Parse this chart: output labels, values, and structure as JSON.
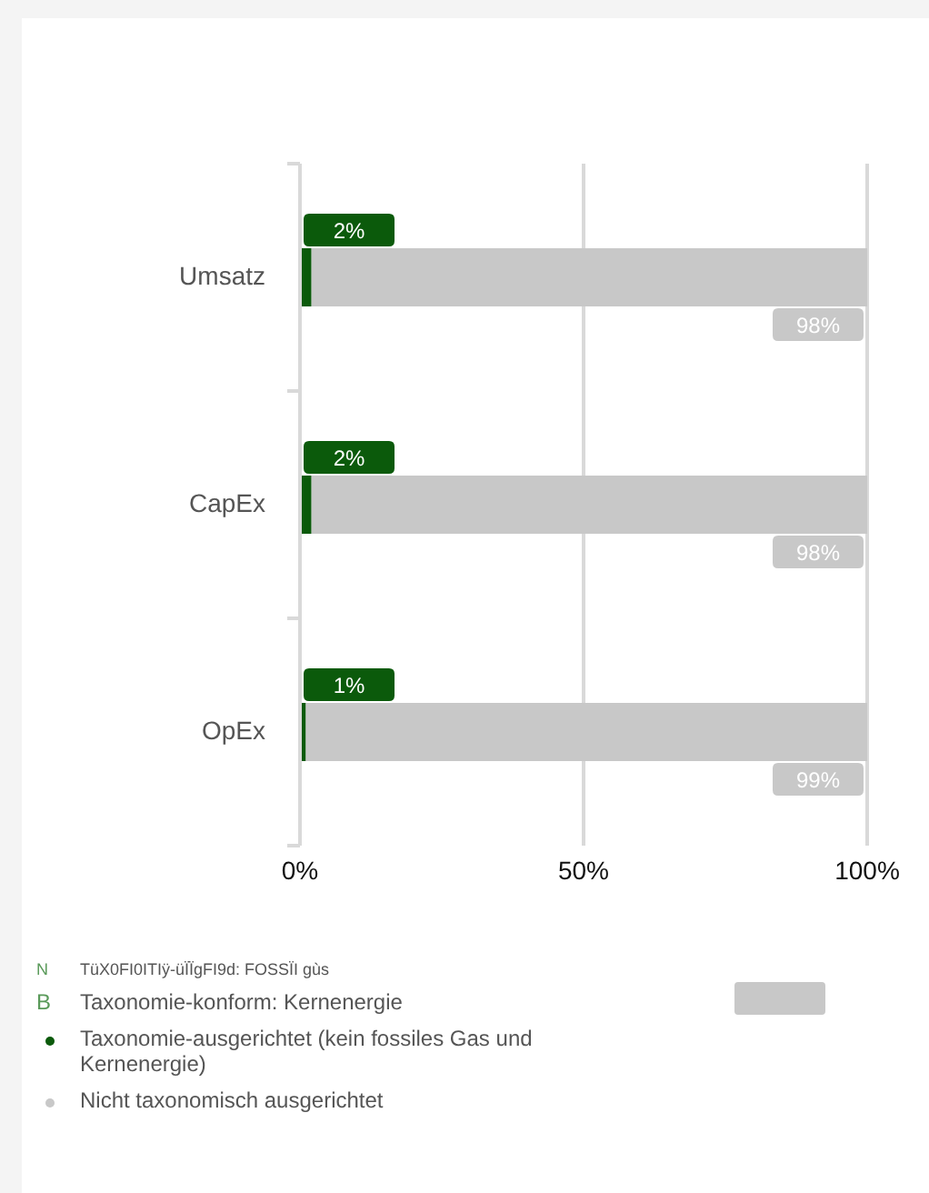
{
  "chart_data": {
    "type": "bar",
    "orientation": "horizontal",
    "stacked": true,
    "categories": [
      "Umsatz",
      "CapEx",
      "OpEx"
    ],
    "series": [
      {
        "name": "Taxonomie-ausgerichtet (kein fossiles Gas und Kernenergie)",
        "color": "#0b5a0b",
        "values": [
          2,
          2,
          1
        ],
        "value_labels": [
          "2%",
          "2%",
          "1%"
        ]
      },
      {
        "name": "Nicht taxonomisch ausgerichtet",
        "color": "#c8c8c8",
        "values": [
          98,
          98,
          99
        ],
        "value_labels": [
          "98%",
          "98%",
          "99%"
        ]
      }
    ],
    "xlim": [
      0,
      100
    ],
    "xticks": [
      {
        "value": 0,
        "label": "0%"
      },
      {
        "value": 50,
        "label": "50%"
      },
      {
        "value": 100,
        "label": "100%"
      }
    ],
    "grid": "x",
    "legend": "bottom",
    "annotations": [
      "N",
      "TüX0FI0ITIÿ-üÏÏgFI9d: FOSSÏI gùs",
      "B",
      "Taxonomie-konform: Kernenergie"
    ]
  }
}
